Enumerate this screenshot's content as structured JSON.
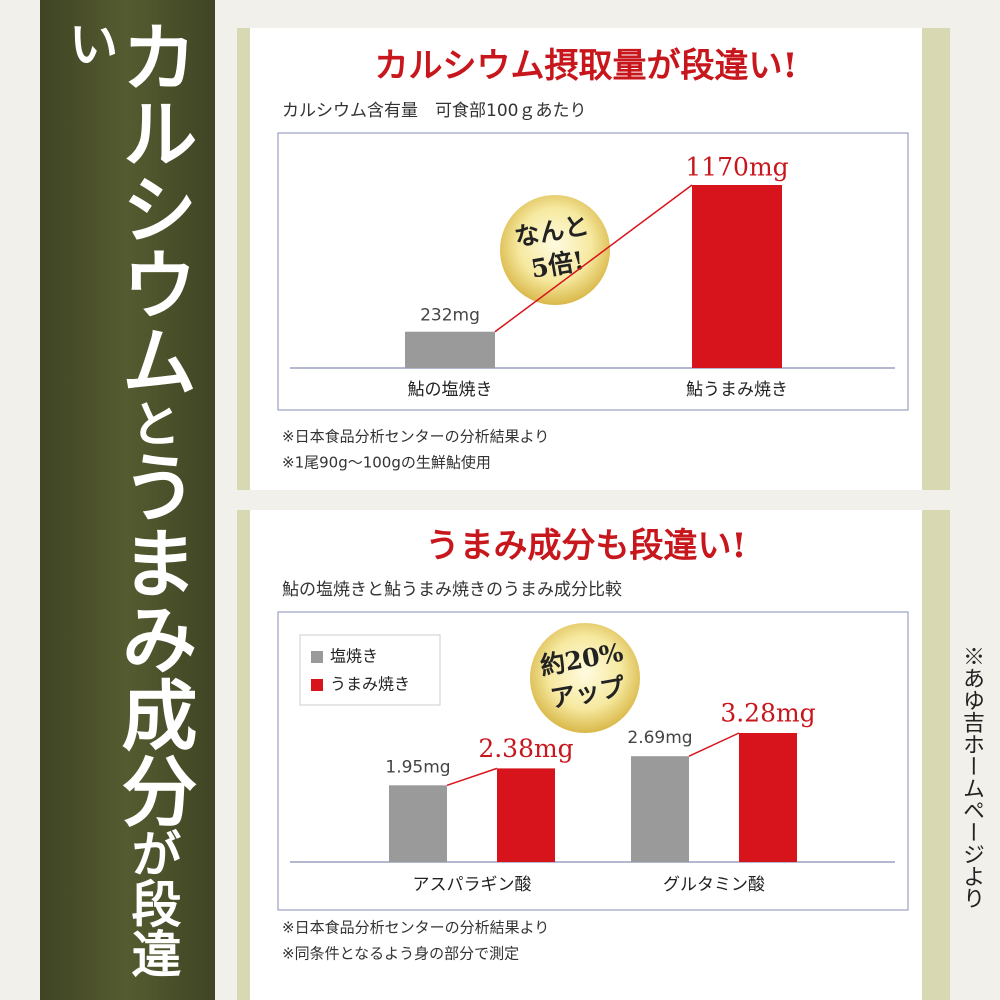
{
  "banner": {
    "parts": [
      "カルシウム",
      "と",
      "うまみ成分",
      "が",
      "段違い"
    ]
  },
  "source_note": "※あゆ吉ホームページより",
  "chart_data": [
    {
      "type": "bar",
      "title": "カルシウム摂取量が段違い!",
      "subtitle": "カルシウム含有量　可食部100ｇあたり",
      "categories": [
        "鮎の塩焼き",
        "鮎うまみ焼き"
      ],
      "values": [
        232,
        1170
      ],
      "value_labels": [
        "232mg",
        "1170mg"
      ],
      "colors": [
        "#9a9a9a",
        "#d7141c"
      ],
      "annotation": [
        "なんと",
        "5倍!"
      ],
      "notes": [
        "※日本食品分析センターの分析結果より",
        "※1尾90g～100gの生鮮鮎使用"
      ]
    },
    {
      "type": "grouped-bar",
      "title": "うまみ成分も段違い!",
      "subtitle": "鮎の塩焼きと鮎うまみ焼きのうまみ成分比較",
      "categories": [
        "アスパラギン酸",
        "グルタミン酸"
      ],
      "series": [
        {
          "name": "塩焼き",
          "color": "#9a9a9a",
          "values": [
            1.95,
            2.69
          ],
          "value_labels": [
            "1.95mg",
            "2.69mg"
          ]
        },
        {
          "name": "うまみ焼き",
          "color": "#d7141c",
          "values": [
            2.38,
            3.28
          ],
          "value_labels": [
            "2.38mg",
            "3.28mg"
          ]
        }
      ],
      "annotation": [
        "約20%",
        "アップ"
      ],
      "notes": [
        "※日本食品分析センターの分析結果より",
        "※同条件となるよう身の部分で測定"
      ]
    }
  ]
}
